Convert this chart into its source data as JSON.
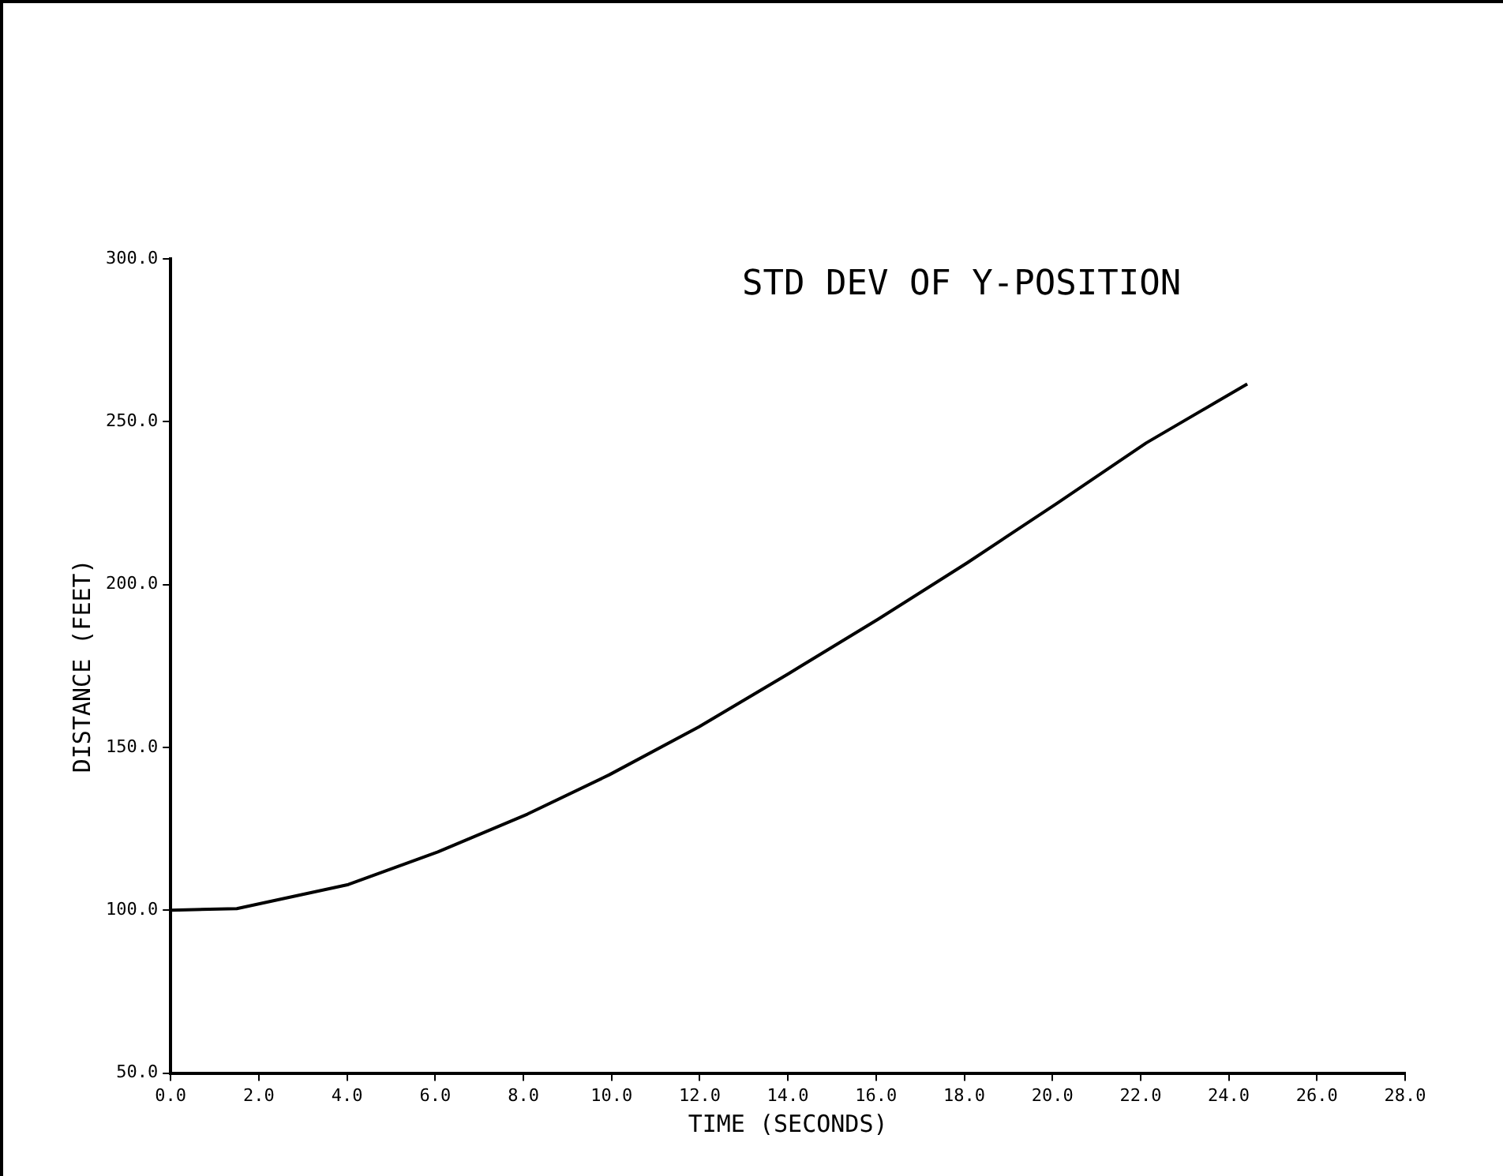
{
  "chart_data": {
    "type": "line",
    "title": "STD DEV OF Y-POSITION",
    "xlabel": "TIME (SECONDS)",
    "ylabel": "DISTANCE (FEET)",
    "x": [
      0,
      1.5,
      4.03,
      6.06,
      8.09,
      9.95,
      11.98,
      14.01,
      16.04,
      18.07,
      20.1,
      22.13,
      24.42
    ],
    "series": [
      {
        "color": "#000000",
        "values": [
          100,
          100.5,
          107.9,
          117.9,
          129.5,
          141.6,
          156.3,
          172.6,
          189.3,
          206.7,
          224.9,
          243.5,
          261.6
        ]
      }
    ],
    "xlim": [
      0,
      28
    ],
    "ylim": [
      50,
      300
    ],
    "xticks": [
      {
        "value": 0,
        "label": "0.0"
      },
      {
        "value": 2,
        "label": "2.0"
      },
      {
        "value": 4,
        "label": "4.0"
      },
      {
        "value": 6,
        "label": "6.0"
      },
      {
        "value": 8,
        "label": "8.0"
      },
      {
        "value": 10,
        "label": "10.0"
      },
      {
        "value": 12,
        "label": "12.0"
      },
      {
        "value": 14,
        "label": "14.0"
      },
      {
        "value": 16,
        "label": "16.0"
      },
      {
        "value": 18,
        "label": "18.0"
      },
      {
        "value": 20,
        "label": "20.0"
      },
      {
        "value": 22,
        "label": "22.0"
      },
      {
        "value": 24,
        "label": "24.0"
      },
      {
        "value": 26,
        "label": "26.0"
      },
      {
        "value": 28,
        "label": "28.0"
      }
    ],
    "yticks": [
      {
        "value": 50,
        "label": "50.0"
      },
      {
        "value": 100,
        "label": "100.0"
      },
      {
        "value": 150,
        "label": "150.0"
      },
      {
        "value": 200,
        "label": "200.0"
      },
      {
        "value": 250,
        "label": "250.0"
      },
      {
        "value": 300,
        "label": "300.0"
      }
    ],
    "marker": "none",
    "line_style": "solid",
    "legend": false
  }
}
